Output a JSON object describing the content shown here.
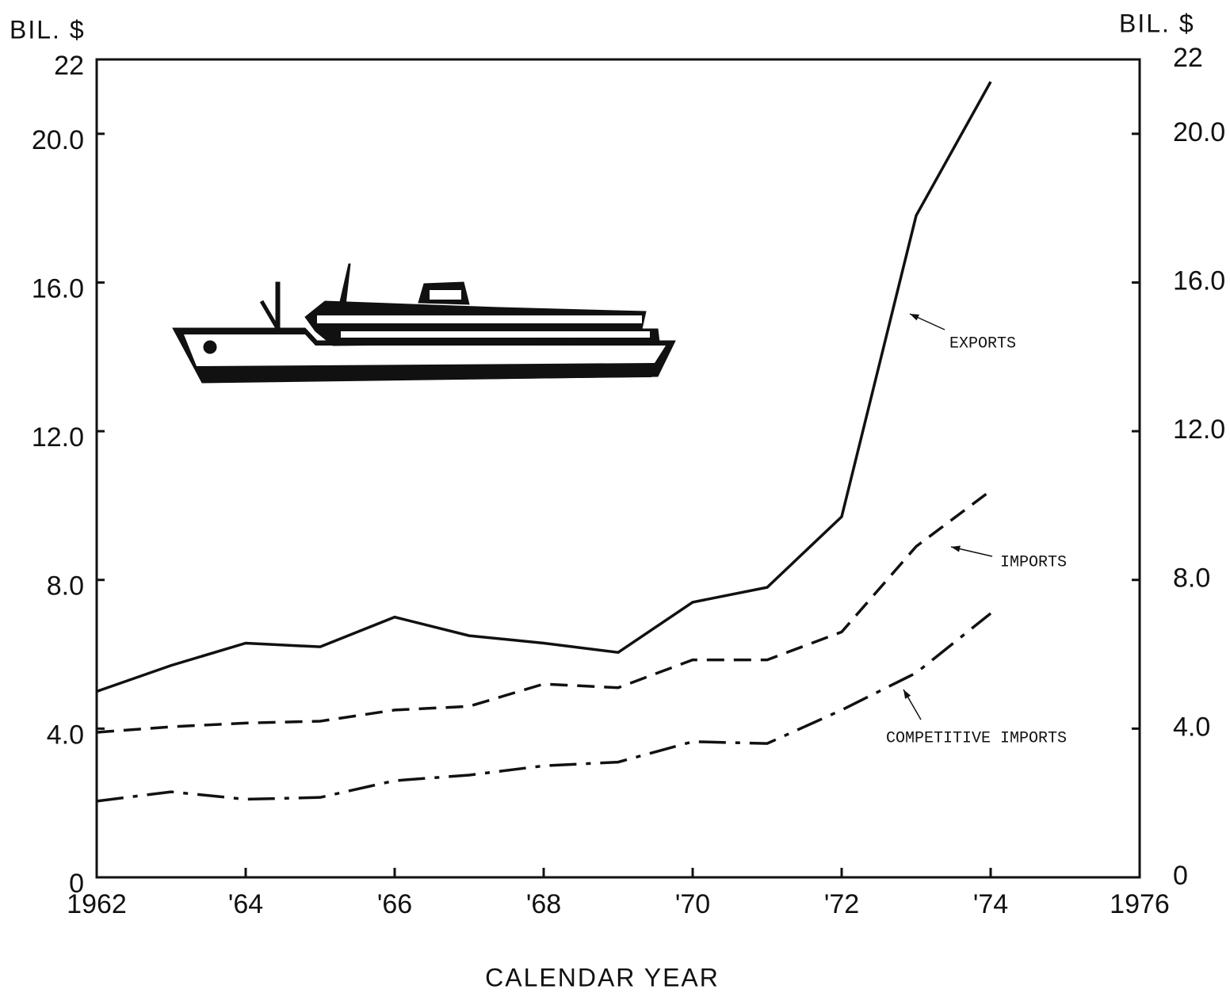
{
  "chart_data": {
    "type": "line",
    "y_label": "BIL. $",
    "y2_label": "BIL. $",
    "x_label": "CALENDAR YEAR",
    "x": [
      1962,
      1963,
      1964,
      1965,
      1966,
      1967,
      1968,
      1969,
      1970,
      1971,
      1972,
      1973,
      1974
    ],
    "series": [
      {
        "name": "EXPORTS",
        "color": "#111111",
        "dash": "solid",
        "values": [
          5.0,
          5.7,
          6.3,
          6.2,
          7.0,
          6.5,
          6.3,
          6.05,
          7.4,
          7.8,
          9.7,
          17.8,
          21.4
        ]
      },
      {
        "name": "IMPORTS",
        "color": "#111111",
        "dash": "dashed",
        "values": [
          3.9,
          4.05,
          4.15,
          4.2,
          4.5,
          4.6,
          5.2,
          5.1,
          5.85,
          5.85,
          6.6,
          8.9,
          10.4
        ]
      },
      {
        "name": "COMPETITIVE IMPORTS",
        "color": "#111111",
        "dash": "dashdot",
        "values": [
          2.05,
          2.3,
          2.1,
          2.15,
          2.6,
          2.75,
          3.0,
          3.1,
          3.65,
          3.6,
          4.5,
          5.5,
          7.1
        ]
      }
    ],
    "xlim": [
      1962,
      1976
    ],
    "xticks": [
      {
        "value": 1962,
        "label": "1962"
      },
      {
        "value": 1964,
        "label": "'64"
      },
      {
        "value": 1966,
        "label": "'66"
      },
      {
        "value": 1968,
        "label": "'68"
      },
      {
        "value": 1970,
        "label": "'70"
      },
      {
        "value": 1972,
        "label": "'72"
      },
      {
        "value": 1974,
        "label": "'74"
      },
      {
        "value": 1976,
        "label": "1976"
      }
    ],
    "ylim": [
      0,
      22
    ],
    "yticks": [
      0,
      {
        "value": 4,
        "label": "4.0"
      },
      {
        "value": 8,
        "label": "8.0"
      },
      {
        "value": 12,
        "label": "12.0"
      },
      {
        "value": 16,
        "label": "16.0"
      },
      {
        "value": 20,
        "label": "20.0"
      },
      22
    ],
    "y2lim": [
      0,
      22
    ],
    "y2ticks": [
      0,
      {
        "value": 4,
        "label": "4.0"
      },
      {
        "value": 8,
        "label": "8.0"
      },
      {
        "value": 12,
        "label": "12.0"
      },
      {
        "value": 16,
        "label": "16.0"
      },
      {
        "value": 20,
        "label": "20.0"
      },
      22
    ],
    "grid": false
  }
}
